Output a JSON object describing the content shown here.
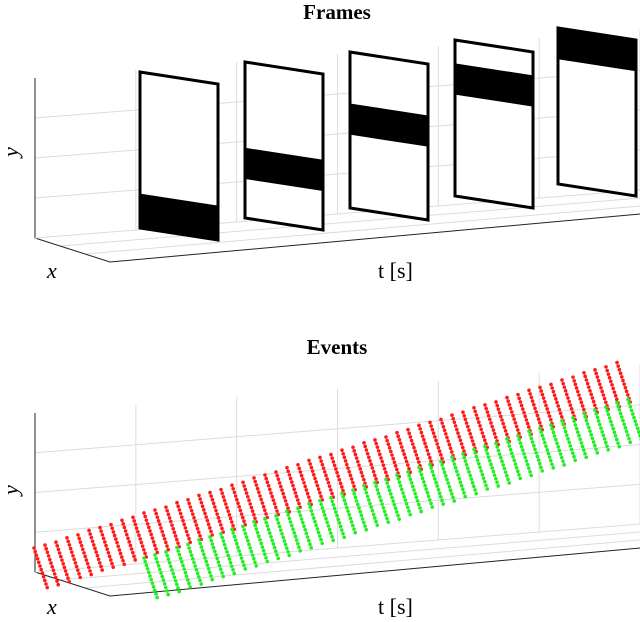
{
  "panels": [
    {
      "title": "Frames",
      "y_label": "y",
      "x_label": "x",
      "t_label": "t [s]"
    },
    {
      "title": "Events",
      "y_label": "y",
      "x_label": "x",
      "t_label": "t [s]"
    }
  ]
}
